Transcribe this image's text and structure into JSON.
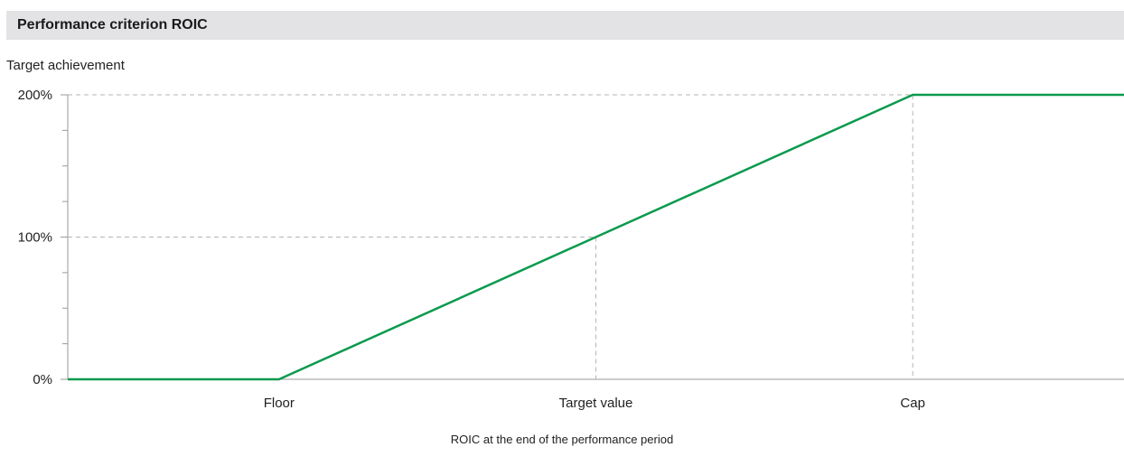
{
  "chart_data": {
    "type": "line",
    "title": "Performance criterion ROIC",
    "ylabel": "Target achievement",
    "xlabel": "ROIC at the end of the performance period",
    "x_categories": [
      "Floor",
      "Target value",
      "Cap"
    ],
    "y_ticks": [
      "0%",
      "100%",
      "200%"
    ],
    "ylim": [
      0,
      200
    ],
    "xlim": [
      0,
      5
    ],
    "series": [
      {
        "points": [
          {
            "x": 0,
            "y": 0
          },
          {
            "x": 1,
            "y": 0
          },
          {
            "x": 2.5,
            "y": 100
          },
          {
            "x": 4,
            "y": 200
          },
          {
            "x": 5,
            "y": 200
          }
        ]
      }
    ],
    "category_positions": [
      1,
      2.5,
      4
    ],
    "line_color": "#0a9a4e",
    "grid": "dashed reference lines at 100% / Target value and 200% / Cap"
  }
}
